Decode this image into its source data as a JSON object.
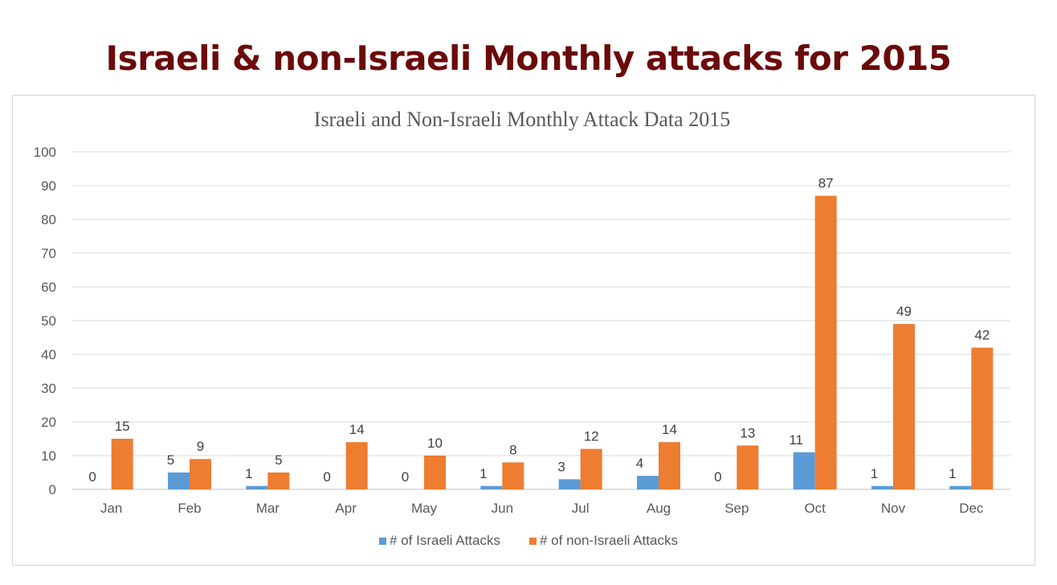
{
  "page": {
    "title": "Israeli & non-Israeli Monthly attacks for 2015",
    "title_color": "#6b0a0a"
  },
  "chart_data": {
    "type": "bar",
    "title": "Israeli and Non-Israeli Monthly Attack Data 2015",
    "categories": [
      "Jan",
      "Feb",
      "Mar",
      "Apr",
      "May",
      "Jun",
      "Jul",
      "Aug",
      "Sep",
      "Oct",
      "Nov",
      "Dec"
    ],
    "series": [
      {
        "name": "# of Israeli Attacks",
        "color": "#5b9bd5",
        "values": [
          0,
          5,
          1,
          0,
          0,
          1,
          3,
          4,
          0,
          11,
          1,
          1
        ]
      },
      {
        "name": "# of non-Israeli Attacks",
        "color": "#ed7d31",
        "values": [
          15,
          9,
          5,
          14,
          10,
          8,
          12,
          14,
          13,
          87,
          49,
          42
        ]
      }
    ],
    "ylim": [
      0,
      100
    ],
    "yticks": [
      0,
      10,
      20,
      30,
      40,
      50,
      60,
      70,
      80,
      90,
      100
    ],
    "xlabel": "",
    "ylabel": "",
    "grid": true,
    "legend_position": "bottom"
  }
}
